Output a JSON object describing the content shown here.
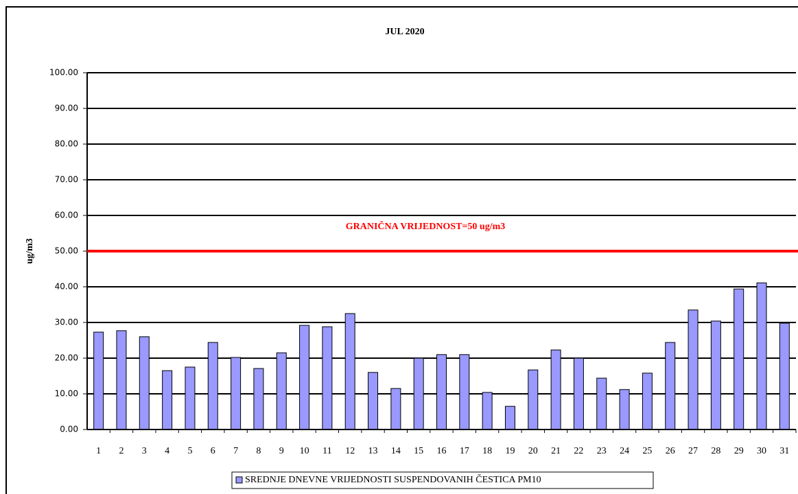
{
  "chart_data": {
    "type": "bar",
    "title": "JUL 2020",
    "y_label": "ug/m3",
    "categories": [
      "1",
      "2",
      "3",
      "4",
      "5",
      "6",
      "7",
      "8",
      "9",
      "10",
      "11",
      "12",
      "13",
      "14",
      "15",
      "16",
      "17",
      "18",
      "19",
      "20",
      "21",
      "22",
      "23",
      "24",
      "25",
      "26",
      "27",
      "28",
      "29",
      "30",
      "31"
    ],
    "series": [
      {
        "name": "SREDNJE DNEVNE VRIJEDNOSTI SUSPENDOVANIH ČESTICA PM10",
        "color": "#9999ff",
        "values": [
          27.3,
          27.7,
          26.0,
          16.5,
          17.5,
          24.4,
          20.2,
          17.1,
          21.5,
          29.2,
          28.8,
          32.5,
          16.0,
          11.5,
          20.0,
          21.0,
          21.0,
          10.4,
          6.5,
          16.7,
          22.3,
          20.0,
          14.4,
          11.2,
          15.8,
          24.4,
          33.5,
          30.4,
          39.4,
          41.1,
          29.8
        ]
      }
    ],
    "ylim": [
      0,
      100
    ],
    "yticks": [
      {
        "value": 0,
        "label": "0.00"
      },
      {
        "value": 10,
        "label": "10.00"
      },
      {
        "value": 20,
        "label": "20.00"
      },
      {
        "value": 30,
        "label": "30.00"
      },
      {
        "value": 40,
        "label": "40.00"
      },
      {
        "value": 50,
        "label": "50.00"
      },
      {
        "value": 60,
        "label": "60.00"
      },
      {
        "value": 70,
        "label": "70.00"
      },
      {
        "value": 80,
        "label": "80.00"
      },
      {
        "value": 90,
        "label": "90.00"
      },
      {
        "value": 100,
        "label": "100.00"
      }
    ],
    "grid": true,
    "threshold": {
      "value": 50,
      "label": "GRANIČNA VRIJEDNOST=50 ug/m3",
      "color": "#ff0000"
    }
  }
}
